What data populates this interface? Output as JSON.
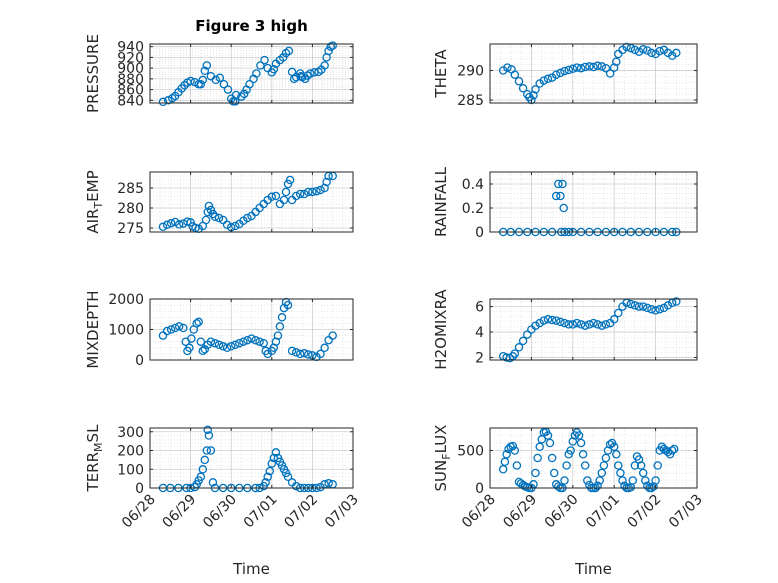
{
  "chart_data": [
    {
      "id": "pressure",
      "type": "scatter",
      "title": "Figure 3 high",
      "ylabel_main": "PRESSURE",
      "ylabel_sub": "",
      "ylabel_tail": "",
      "yticks": [
        "840",
        "860",
        "880",
        "900",
        "920",
        "940"
      ],
      "ylim": [
        835,
        945
      ],
      "x_ticks_shown": false,
      "series": [
        {
          "x": [
            0.32,
            0.45,
            0.55,
            0.62,
            0.7,
            0.78,
            0.85,
            0.92,
            1.0,
            1.1,
            1.2,
            1.25,
            1.3,
            1.35,
            1.4,
            1.5,
            1.62,
            1.72,
            1.82,
            1.92,
            2.0,
            2.05,
            2.1,
            2.12,
            2.25,
            2.32,
            2.38,
            2.45,
            2.55,
            2.62,
            2.72,
            2.82,
            2.9,
            3.0,
            3.05,
            3.1,
            3.2,
            3.28,
            3.35,
            3.42,
            3.5,
            3.55,
            3.6,
            3.7,
            3.72,
            3.75,
            3.82,
            3.88,
            3.95,
            4.05,
            4.15,
            4.22,
            4.3,
            4.35,
            4.4,
            4.45,
            4.5
          ],
          "y": [
            837,
            840,
            844,
            848,
            855,
            862,
            868,
            873,
            876,
            874,
            870,
            870,
            878,
            895,
            905,
            885,
            878,
            882,
            870,
            860,
            843,
            838,
            838,
            850,
            847,
            852,
            860,
            870,
            880,
            890,
            905,
            915,
            900,
            892,
            898,
            908,
            915,
            920,
            928,
            932,
            893,
            880,
            883,
            890,
            885,
            883,
            880,
            886,
            890,
            892,
            893,
            897,
            905,
            920,
            932,
            940,
            942
          ]
        }
      ]
    },
    {
      "id": "theta",
      "type": "scatter",
      "title": "",
      "ylabel_main": "THETA",
      "ylabel_sub": "",
      "ylabel_tail": "",
      "yticks": [
        "285",
        "290"
      ],
      "ylim": [
        284.5,
        294.5
      ],
      "x_ticks_shown": false,
      "series": [
        {
          "x": [
            0.32,
            0.42,
            0.52,
            0.6,
            0.7,
            0.8,
            0.9,
            0.95,
            1.0,
            1.05,
            1.1,
            1.2,
            1.3,
            1.4,
            1.5,
            1.6,
            1.7,
            1.8,
            1.9,
            2.0,
            2.1,
            2.2,
            2.3,
            2.4,
            2.5,
            2.6,
            2.7,
            2.8,
            2.9,
            3.0,
            3.05,
            3.1,
            3.2,
            3.3,
            3.4,
            3.5,
            3.6,
            3.7,
            3.8,
            3.9,
            4.0,
            4.1,
            4.2,
            4.3,
            4.4,
            4.5
          ],
          "y": [
            290.0,
            290.5,
            290.2,
            289.3,
            288.2,
            287.0,
            286.0,
            285.5,
            285.0,
            285.8,
            286.8,
            287.8,
            288.3,
            288.6,
            288.8,
            289.3,
            289.6,
            289.9,
            290.1,
            290.3,
            290.5,
            290.4,
            290.6,
            290.7,
            290.6,
            290.8,
            290.7,
            290.4,
            289.5,
            290.5,
            291.5,
            292.8,
            293.5,
            294.0,
            293.8,
            293.5,
            293.2,
            293.6,
            293.4,
            293.0,
            292.8,
            293.3,
            293.5,
            293.0,
            292.5,
            293.0
          ]
        }
      ]
    },
    {
      "id": "airtemp",
      "type": "scatter",
      "title": "",
      "ylabel_main": "AIR",
      "ylabel_sub": "T",
      "ylabel_tail": "EMP",
      "yticks": [
        "275",
        "280",
        "285"
      ],
      "ylim": [
        274,
        289
      ],
      "x_ticks_shown": false,
      "series": [
        {
          "x": [
            0.32,
            0.42,
            0.52,
            0.62,
            0.72,
            0.82,
            0.92,
            1.0,
            1.05,
            1.12,
            1.2,
            1.3,
            1.38,
            1.42,
            1.45,
            1.5,
            1.55,
            1.6,
            1.7,
            1.8,
            1.9,
            2.0,
            2.1,
            2.2,
            2.3,
            2.4,
            2.5,
            2.6,
            2.7,
            2.8,
            2.9,
            3.0,
            3.1,
            3.2,
            3.3,
            3.35,
            3.4,
            3.45,
            3.5,
            3.6,
            3.7,
            3.8,
            3.9,
            4.0,
            4.1,
            4.2,
            4.3,
            4.35,
            4.4,
            4.5
          ],
          "y": [
            275.3,
            275.8,
            276.2,
            276.5,
            275.9,
            276.1,
            276.6,
            276.4,
            275.4,
            275.0,
            274.8,
            275.5,
            277.0,
            279.0,
            280.5,
            279.5,
            278.5,
            277.8,
            277.5,
            277.0,
            275.8,
            275.2,
            275.5,
            276.0,
            276.8,
            277.5,
            278.0,
            279.0,
            280.0,
            281.0,
            282.0,
            282.8,
            283.0,
            281.0,
            282.0,
            284.0,
            286.0,
            287.0,
            282.0,
            283.0,
            283.5,
            283.5,
            284.0,
            284.0,
            284.2,
            284.5,
            285.0,
            286.5,
            288.0,
            288.0
          ]
        }
      ]
    },
    {
      "id": "rainfall",
      "type": "scatter",
      "title": "",
      "ylabel_main": "RAINFALL",
      "ylabel_sub": "",
      "ylabel_tail": "",
      "yticks": [
        "0",
        "0.2",
        "0.4"
      ],
      "ylim": [
        0,
        0.5
      ],
      "x_ticks_shown": false,
      "series": [
        {
          "x": [
            0.32,
            0.5,
            0.7,
            0.9,
            1.1,
            1.3,
            1.5,
            1.6,
            1.65,
            1.7,
            1.72,
            1.75,
            1.78,
            1.8,
            1.9,
            2.0,
            2.2,
            2.4,
            2.6,
            2.8,
            3.0,
            3.2,
            3.4,
            3.6,
            3.8,
            4.0,
            4.2,
            4.4,
            4.5
          ],
          "y": [
            0,
            0,
            0,
            0,
            0,
            0,
            0,
            0.3,
            0.4,
            0.3,
            0,
            0.4,
            0.2,
            0,
            0,
            0,
            0,
            0,
            0,
            0,
            0,
            0,
            0,
            0,
            0,
            0,
            0,
            0,
            0
          ]
        }
      ]
    },
    {
      "id": "mixdepth",
      "type": "scatter",
      "title": "",
      "ylabel_main": "MIXDEPTH",
      "ylabel_sub": "",
      "ylabel_tail": "",
      "yticks": [
        "0",
        "1000",
        "2000"
      ],
      "ylim": [
        0,
        2000
      ],
      "x_ticks_shown": false,
      "series": [
        {
          "x": [
            0.32,
            0.42,
            0.52,
            0.62,
            0.72,
            0.82,
            0.88,
            0.92,
            0.97,
            1.02,
            1.08,
            1.15,
            1.2,
            1.25,
            1.3,
            1.35,
            1.42,
            1.5,
            1.6,
            1.7,
            1.8,
            1.9,
            2.0,
            2.1,
            2.2,
            2.3,
            2.4,
            2.5,
            2.6,
            2.7,
            2.8,
            2.85,
            2.9,
            3.0,
            3.05,
            3.1,
            3.15,
            3.2,
            3.25,
            3.3,
            3.35,
            3.4,
            3.5,
            3.6,
            3.7,
            3.8,
            3.9,
            4.0,
            4.1,
            4.2,
            4.3,
            4.4,
            4.5
          ],
          "y": [
            800,
            950,
            1000,
            1050,
            1100,
            1050,
            600,
            300,
            400,
            700,
            1000,
            1200,
            1250,
            600,
            300,
            350,
            500,
            600,
            550,
            500,
            450,
            400,
            450,
            500,
            550,
            600,
            650,
            700,
            650,
            600,
            550,
            300,
            200,
            300,
            400,
            600,
            800,
            1100,
            1400,
            1700,
            1900,
            1800,
            300,
            250,
            200,
            220,
            180,
            150,
            100,
            200,
            400,
            650,
            800
          ]
        }
      ]
    },
    {
      "id": "h2omixra",
      "type": "scatter",
      "title": "",
      "ylabel_main": "H2OMIXRA",
      "ylabel_sub": "",
      "ylabel_tail": "",
      "yticks": [
        "2",
        "4",
        "6"
      ],
      "ylim": [
        1.8,
        6.6
      ],
      "x_ticks_shown": false,
      "series": [
        {
          "x": [
            0.32,
            0.4,
            0.48,
            0.55,
            0.6,
            0.7,
            0.8,
            0.9,
            1.0,
            1.1,
            1.2,
            1.3,
            1.4,
            1.5,
            1.6,
            1.7,
            1.8,
            1.9,
            2.0,
            2.1,
            2.2,
            2.3,
            2.4,
            2.5,
            2.6,
            2.7,
            2.8,
            2.9,
            3.0,
            3.1,
            3.2,
            3.3,
            3.4,
            3.5,
            3.6,
            3.7,
            3.8,
            3.9,
            4.0,
            4.1,
            4.2,
            4.3,
            4.4,
            4.5
          ],
          "y": [
            2.1,
            2.0,
            1.95,
            2.1,
            2.3,
            2.8,
            3.3,
            3.8,
            4.2,
            4.5,
            4.7,
            4.9,
            5.0,
            4.95,
            4.9,
            4.8,
            4.7,
            4.6,
            4.6,
            4.7,
            4.6,
            4.5,
            4.6,
            4.7,
            4.6,
            4.5,
            4.6,
            4.7,
            5.0,
            5.5,
            6.0,
            6.3,
            6.2,
            6.1,
            6.0,
            6.0,
            5.9,
            5.8,
            5.7,
            5.8,
            5.9,
            6.1,
            6.3,
            6.4
          ]
        }
      ]
    },
    {
      "id": "terrmsl",
      "type": "scatter",
      "title": "",
      "ylabel_main": "TERR",
      "ylabel_sub": "M",
      "ylabel_tail": "SL",
      "yticks": [
        "0",
        "100",
        "200",
        "300"
      ],
      "ylim": [
        0,
        320
      ],
      "x_ticks_shown": true,
      "series": [
        {
          "x": [
            0.32,
            0.5,
            0.7,
            0.9,
            1.0,
            1.1,
            1.15,
            1.2,
            1.25,
            1.3,
            1.35,
            1.4,
            1.42,
            1.45,
            1.5,
            1.55,
            1.6,
            1.8,
            2.0,
            2.2,
            2.4,
            2.6,
            2.7,
            2.8,
            2.85,
            2.9,
            2.95,
            3.0,
            3.05,
            3.1,
            3.15,
            3.2,
            3.25,
            3.3,
            3.35,
            3.4,
            3.5,
            3.6,
            3.7,
            3.8,
            3.9,
            4.0,
            4.1,
            4.2,
            4.3,
            4.4,
            4.5
          ],
          "y": [
            0,
            0,
            0,
            0,
            0,
            5,
            20,
            40,
            60,
            100,
            150,
            200,
            310,
            280,
            200,
            30,
            0,
            0,
            0,
            0,
            0,
            0,
            0,
            10,
            30,
            60,
            90,
            130,
            160,
            190,
            160,
            140,
            120,
            100,
            80,
            60,
            30,
            10,
            0,
            0,
            0,
            0,
            0,
            5,
            20,
            25,
            20
          ]
        }
      ]
    },
    {
      "id": "sunflux",
      "type": "scatter",
      "title": "",
      "ylabel_main": "SUN",
      "ylabel_sub": "F",
      "ylabel_tail": "LUX",
      "yticks": [
        "0",
        "500"
      ],
      "ylim": [
        0,
        800
      ],
      "x_ticks_shown": true,
      "series": [
        {
          "x": [
            0.32,
            0.36,
            0.4,
            0.45,
            0.5,
            0.55,
            0.6,
            0.65,
            0.7,
            0.75,
            0.8,
            0.85,
            0.9,
            0.95,
            1.0,
            1.05,
            1.1,
            1.15,
            1.2,
            1.25,
            1.3,
            1.35,
            1.4,
            1.45,
            1.5,
            1.55,
            1.6,
            1.65,
            1.7,
            1.75,
            1.8,
            1.85,
            1.9,
            1.95,
            2.0,
            2.05,
            2.1,
            2.15,
            2.2,
            2.25,
            2.3,
            2.35,
            2.4,
            2.45,
            2.5,
            2.55,
            2.6,
            2.65,
            2.7,
            2.75,
            2.8,
            2.85,
            2.9,
            2.95,
            3.0,
            3.05,
            3.1,
            3.15,
            3.2,
            3.25,
            3.3,
            3.35,
            3.4,
            3.45,
            3.5,
            3.55,
            3.6,
            3.65,
            3.7,
            3.75,
            3.8,
            3.85,
            3.9,
            3.95,
            4.0,
            4.05,
            4.1,
            4.15,
            4.2,
            4.25,
            4.3,
            4.35,
            4.4,
            4.45
          ],
          "y": [
            250,
            350,
            450,
            520,
            550,
            560,
            500,
            300,
            80,
            60,
            40,
            20,
            10,
            0,
            0,
            50,
            200,
            400,
            550,
            650,
            740,
            750,
            700,
            600,
            400,
            200,
            50,
            20,
            0,
            0,
            100,
            300,
            450,
            500,
            620,
            700,
            740,
            700,
            600,
            450,
            300,
            100,
            40,
            0,
            0,
            0,
            30,
            100,
            200,
            300,
            400,
            500,
            580,
            600,
            550,
            450,
            300,
            200,
            100,
            30,
            0,
            0,
            10,
            100,
            300,
            420,
            380,
            300,
            200,
            100,
            30,
            0,
            0,
            20,
            100,
            300,
            500,
            550,
            520,
            500,
            480,
            450,
            500,
            520
          ]
        }
      ]
    }
  ],
  "x_axis": {
    "ticks": [
      "06/28",
      "06/29",
      "06/30",
      "07/01",
      "07/02",
      "07/03"
    ],
    "label": "Time"
  }
}
